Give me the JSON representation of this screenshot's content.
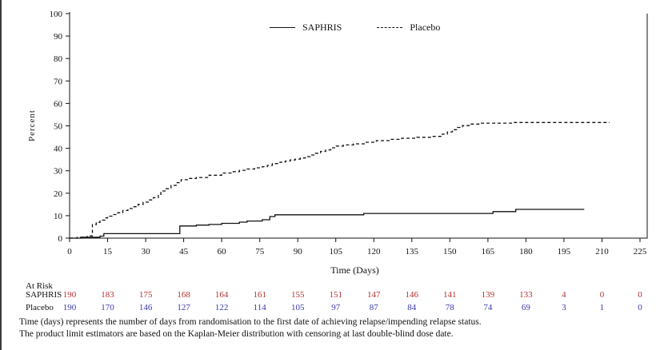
{
  "chart_data": {
    "type": "line",
    "subtype": "kaplan-meier-step",
    "title": "",
    "xlabel": "Time (Days)",
    "ylabel": "Percent",
    "xlim": [
      0,
      225
    ],
    "ylim": [
      0,
      100
    ],
    "x_ticks": [
      0,
      15,
      30,
      45,
      60,
      75,
      90,
      105,
      120,
      135,
      150,
      165,
      180,
      195,
      210,
      225
    ],
    "y_ticks": [
      0,
      10,
      20,
      30,
      40,
      50,
      60,
      70,
      80,
      90,
      100
    ],
    "grid": false,
    "legend_position": "top-center",
    "series": [
      {
        "name": "SAPHRIS",
        "line": "solid",
        "color": "#111111",
        "points": [
          [
            0,
            0
          ],
          [
            5,
            0.4
          ],
          [
            12,
            0.9
          ],
          [
            13.5,
            2
          ],
          [
            43.5,
            5.4
          ],
          [
            50,
            5.8
          ],
          [
            55,
            6.1
          ],
          [
            60,
            6.6
          ],
          [
            67,
            7.1
          ],
          [
            70,
            7.6
          ],
          [
            76,
            8.2
          ],
          [
            79,
            9.6
          ],
          [
            81,
            10.4
          ],
          [
            116,
            11
          ],
          [
            167,
            11.8
          ],
          [
            176,
            12.8
          ],
          [
            203,
            12.8
          ]
        ]
      },
      {
        "name": "Placebo",
        "line": "dashed",
        "color": "#111111",
        "points": [
          [
            0,
            0
          ],
          [
            3,
            0.4
          ],
          [
            7,
            1
          ],
          [
            9,
            6
          ],
          [
            10.5,
            7
          ],
          [
            12,
            8
          ],
          [
            14,
            9
          ],
          [
            15,
            9.8
          ],
          [
            17,
            10.5
          ],
          [
            19,
            11.3
          ],
          [
            21,
            12.3
          ],
          [
            23,
            13.2
          ],
          [
            25,
            14
          ],
          [
            27,
            15
          ],
          [
            29,
            16
          ],
          [
            31,
            17
          ],
          [
            33,
            18
          ],
          [
            35,
            19.5
          ],
          [
            36,
            21
          ],
          [
            38,
            22
          ],
          [
            40,
            23.5
          ],
          [
            42,
            24.7
          ],
          [
            44,
            26
          ],
          [
            47,
            26.6
          ],
          [
            50,
            27
          ],
          [
            55,
            28
          ],
          [
            60,
            29
          ],
          [
            64,
            29.6
          ],
          [
            67,
            30.2
          ],
          [
            70,
            30.8
          ],
          [
            73,
            31.3
          ],
          [
            76,
            31.8
          ],
          [
            78,
            32.4
          ],
          [
            80,
            33.2
          ],
          [
            83,
            33.8
          ],
          [
            85,
            34.3
          ],
          [
            87,
            34.8
          ],
          [
            89,
            35.2
          ],
          [
            91,
            35.7
          ],
          [
            93,
            36.3
          ],
          [
            95,
            37
          ],
          [
            97,
            37.8
          ],
          [
            99,
            38.6
          ],
          [
            101,
            39.3
          ],
          [
            103,
            40.2
          ],
          [
            105,
            41
          ],
          [
            108,
            41.5
          ],
          [
            112,
            42
          ],
          [
            117,
            42.7
          ],
          [
            121,
            43.4
          ],
          [
            126,
            44
          ],
          [
            131,
            44.5
          ],
          [
            137,
            44.9
          ],
          [
            143,
            45.3
          ],
          [
            147,
            46.3
          ],
          [
            149,
            47.3
          ],
          [
            151,
            48.3
          ],
          [
            153,
            49.3
          ],
          [
            155,
            50.1
          ],
          [
            158,
            50.8
          ],
          [
            162,
            51.2
          ],
          [
            175,
            51.5
          ],
          [
            213,
            51.5
          ]
        ]
      }
    ]
  },
  "at_risk": {
    "title": "At Risk",
    "rows": [
      {
        "label": "SAPHRIS",
        "color": "#b03333",
        "values": [
          190,
          183,
          175,
          168,
          164,
          161,
          155,
          151,
          147,
          146,
          141,
          139,
          133,
          4,
          0,
          0
        ]
      },
      {
        "label": "Placebo",
        "color": "#3838a8",
        "values": [
          190,
          170,
          146,
          127,
          122,
          114,
          105,
          97,
          87,
          84,
          78,
          74,
          69,
          3,
          1,
          0
        ]
      }
    ]
  },
  "footnotes": [
    "Time (days) represents the number of days from randomisation to the first date of achieving relapse/impending relapse status.",
    "The product limit estimators are based on the Kaplan-Meier distribution with censoring at last double-blind dose date."
  ]
}
